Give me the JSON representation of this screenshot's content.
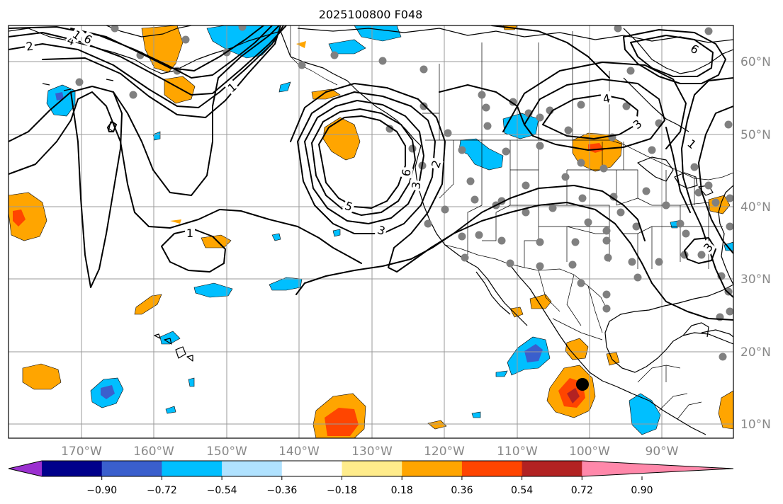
{
  "title": "2025100800 F048",
  "longitude_ticks": [
    "170°W",
    "160°W",
    "150°W",
    "140°W",
    "130°W",
    "120°W",
    "110°W",
    "100°W",
    "90°W"
  ],
  "latitude_ticks": [
    "60°N",
    "50°N",
    "40°N",
    "30°N",
    "20°N",
    "10°N"
  ],
  "colorbar": {
    "tick_labels": [
      "−0.90",
      "−0.72",
      "−0.54",
      "−0.36",
      "−0.18",
      "0.18",
      "0.36",
      "0.54",
      "0.72",
      "0.90"
    ],
    "colors": [
      "#9b30d0",
      "#00008b",
      "#3a5fcd",
      "#00bfff",
      "#b0e2ff",
      "#ffffff",
      "#ffec8b",
      "#ffa500",
      "#ff4500",
      "#b22222",
      "#ff88aa"
    ]
  },
  "contour_labels": [
    "2",
    "4",
    "6",
    "1",
    "1",
    "6",
    "2",
    "5",
    "3",
    "4",
    "3",
    "6",
    "3",
    "1",
    "1",
    "3"
  ],
  "colors": {
    "positive_1": "#ffa500",
    "positive_2": "#ff4500",
    "positive_3": "#b22222",
    "negative_1": "#00bfff",
    "negative_2": "#3a5fcd",
    "station": "#808080",
    "marker": "#000000"
  }
}
